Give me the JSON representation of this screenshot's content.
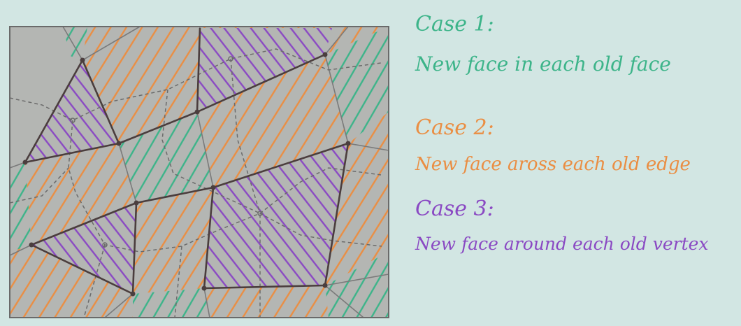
{
  "colors": {
    "background": "#d2e6e3",
    "panel": "#b4b6b3",
    "green": "#3cb489",
    "orange": "#ea8e43",
    "purple": "#8a49c3",
    "solid_edge": "#4b3e3e",
    "dashed_edge": "#6b6b6b",
    "frame": "#6a6a6a"
  },
  "legend": [
    {
      "id": "case1",
      "title": "Case 1:",
      "desc": "New face in each old face",
      "color_key": "green"
    },
    {
      "id": "case2",
      "title": "Case 2:",
      "desc": "New face aross each old edge",
      "color_key": "orange"
    },
    {
      "id": "case3",
      "title": "Case 3:",
      "desc": "New face around each old vertex",
      "color_key": "purple"
    }
  ]
}
